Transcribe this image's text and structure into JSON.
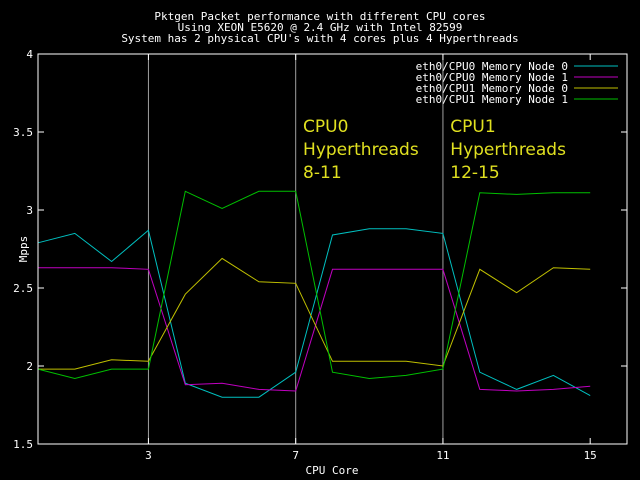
{
  "chart_data": {
    "type": "line",
    "title_lines": [
      "Pktgen Packet performance with different CPU cores",
      "Using XEON E5620 @ 2.4 GHz with Intel 82599",
      "System has 2 physical CPU's with 4 cores plus 4 Hyperthreads"
    ],
    "xlabel": "CPU Core",
    "ylabel": "Mpps",
    "xlim": [
      0,
      16
    ],
    "ylim": [
      1.5,
      4
    ],
    "xticks": [
      3,
      7,
      11,
      15
    ],
    "yticks": [
      1.5,
      2,
      2.5,
      3,
      3.5,
      4
    ],
    "ytick_labels": [
      "1.5",
      "2",
      "2.5",
      "3",
      "3.5",
      "4"
    ],
    "vertical_gridlines": [
      3,
      7,
      11
    ],
    "legend_position": "top-right",
    "x": [
      0,
      1,
      2,
      3,
      4,
      5,
      6,
      7,
      8,
      9,
      10,
      11,
      12,
      13,
      14,
      15
    ],
    "series": [
      {
        "name": "eth0/CPU0 Memory Node 0",
        "color": "#00c0c0",
        "values": [
          2.79,
          2.85,
          2.67,
          2.87,
          1.89,
          1.8,
          1.8,
          1.96,
          2.84,
          2.88,
          2.88,
          2.85,
          1.96,
          1.85,
          1.94,
          1.81
        ]
      },
      {
        "name": "eth0/CPU0 Memory Node 1",
        "color": "#c000c0",
        "values": [
          2.63,
          2.63,
          2.63,
          2.62,
          1.88,
          1.89,
          1.85,
          1.84,
          2.62,
          2.62,
          2.62,
          2.62,
          1.85,
          1.84,
          1.85,
          1.87
        ]
      },
      {
        "name": "eth0/CPU1 Memory Node 0",
        "color": "#c0c000",
        "values": [
          1.98,
          1.98,
          2.04,
          2.03,
          2.46,
          2.69,
          2.54,
          2.53,
          2.03,
          2.03,
          2.03,
          2.0,
          2.62,
          2.47,
          2.63,
          2.62
        ]
      },
      {
        "name": "eth0/CPU1 Memory Node 1",
        "color": "#00c000",
        "values": [
          1.98,
          1.92,
          1.98,
          1.98,
          3.12,
          3.01,
          3.12,
          3.12,
          1.96,
          1.92,
          1.94,
          1.98,
          3.11,
          3.1,
          3.11,
          3.11
        ]
      }
    ],
    "annotations": [
      {
        "lines": [
          "CPU0",
          "Hyperthreads",
          "8-11"
        ],
        "x": 7.2,
        "y": 3.5,
        "color": "#e0e020"
      },
      {
        "lines": [
          "CPU1",
          "Hyperthreads",
          "12-15"
        ],
        "x": 11.2,
        "y": 3.5,
        "color": "#e0e020"
      }
    ],
    "colors": {
      "background": "#000000",
      "text": "#ffffff",
      "axis": "#ffffff",
      "grid": "#a0a0a0"
    }
  }
}
